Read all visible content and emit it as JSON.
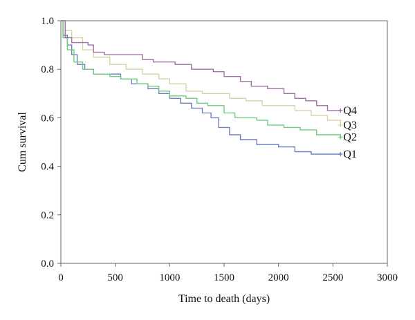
{
  "chart_data": {
    "type": "line",
    "title": "",
    "xlabel": "Time to death (days)",
    "ylabel": "Cum survival",
    "xlim": [
      0,
      3000
    ],
    "ylim": [
      0.0,
      1.0
    ],
    "x_ticks": [
      0,
      500,
      1000,
      1500,
      2000,
      2500,
      3000
    ],
    "x_tick_labels": [
      "0",
      "500",
      "1000",
      "1500",
      "2000",
      "2500",
      "3000"
    ],
    "y_ticks": [
      0.0,
      0.2,
      0.4,
      0.6,
      0.8,
      1.0
    ],
    "y_tick_labels": [
      "0.0",
      "0.2",
      "0.4",
      "0.6",
      "0.8",
      "1.0"
    ],
    "grid": false,
    "legend": "labels at line ends (right)",
    "series": [
      {
        "name": "Q1",
        "color": "#6f7fbf",
        "points": [
          [
            0,
            1.0
          ],
          [
            20,
            0.94
          ],
          [
            60,
            0.9
          ],
          [
            100,
            0.86
          ],
          [
            150,
            0.82
          ],
          [
            220,
            0.8
          ],
          [
            300,
            0.78
          ],
          [
            500,
            0.78
          ],
          [
            550,
            0.76
          ],
          [
            650,
            0.74
          ],
          [
            800,
            0.72
          ],
          [
            900,
            0.7
          ],
          [
            1000,
            0.68
          ],
          [
            1100,
            0.66
          ],
          [
            1200,
            0.64
          ],
          [
            1300,
            0.62
          ],
          [
            1380,
            0.6
          ],
          [
            1450,
            0.56
          ],
          [
            1550,
            0.53
          ],
          [
            1650,
            0.51
          ],
          [
            1800,
            0.49
          ],
          [
            2000,
            0.48
          ],
          [
            2150,
            0.46
          ],
          [
            2300,
            0.45
          ],
          [
            2570,
            0.45
          ]
        ],
        "end_label": "Q1"
      },
      {
        "name": "Q2",
        "color": "#6fcf7f",
        "points": [
          [
            0,
            1.0
          ],
          [
            20,
            0.93
          ],
          [
            60,
            0.88
          ],
          [
            120,
            0.83
          ],
          [
            200,
            0.8
          ],
          [
            300,
            0.78
          ],
          [
            450,
            0.77
          ],
          [
            550,
            0.76
          ],
          [
            700,
            0.74
          ],
          [
            800,
            0.73
          ],
          [
            900,
            0.71
          ],
          [
            1000,
            0.69
          ],
          [
            1150,
            0.68
          ],
          [
            1250,
            0.66
          ],
          [
            1350,
            0.65
          ],
          [
            1500,
            0.62
          ],
          [
            1600,
            0.6
          ],
          [
            1800,
            0.59
          ],
          [
            1900,
            0.57
          ],
          [
            2050,
            0.56
          ],
          [
            2200,
            0.55
          ],
          [
            2350,
            0.53
          ],
          [
            2570,
            0.52
          ]
        ],
        "end_label": "Q2"
      },
      {
        "name": "Q3",
        "color": "#d9d2a6",
        "points": [
          [
            0,
            1.0
          ],
          [
            40,
            0.96
          ],
          [
            100,
            0.93
          ],
          [
            200,
            0.88
          ],
          [
            300,
            0.85
          ],
          [
            450,
            0.82
          ],
          [
            600,
            0.8
          ],
          [
            750,
            0.78
          ],
          [
            900,
            0.76
          ],
          [
            1000,
            0.74
          ],
          [
            1150,
            0.71
          ],
          [
            1300,
            0.7
          ],
          [
            1450,
            0.7
          ],
          [
            1550,
            0.68
          ],
          [
            1700,
            0.67
          ],
          [
            1850,
            0.65
          ],
          [
            2000,
            0.65
          ],
          [
            2150,
            0.63
          ],
          [
            2300,
            0.61
          ],
          [
            2450,
            0.59
          ],
          [
            2570,
            0.57
          ]
        ],
        "end_label": "Q3"
      },
      {
        "name": "Q4",
        "color": "#9f6fa6",
        "points": [
          [
            0,
            1.0
          ],
          [
            40,
            0.93
          ],
          [
            100,
            0.91
          ],
          [
            250,
            0.9
          ],
          [
            300,
            0.87
          ],
          [
            400,
            0.86
          ],
          [
            700,
            0.86
          ],
          [
            750,
            0.84
          ],
          [
            850,
            0.83
          ],
          [
            1050,
            0.82
          ],
          [
            1200,
            0.8
          ],
          [
            1400,
            0.79
          ],
          [
            1500,
            0.77
          ],
          [
            1650,
            0.75
          ],
          [
            1750,
            0.73
          ],
          [
            1900,
            0.72
          ],
          [
            2050,
            0.7
          ],
          [
            2150,
            0.68
          ],
          [
            2250,
            0.67
          ],
          [
            2350,
            0.65
          ],
          [
            2450,
            0.63
          ],
          [
            2570,
            0.63
          ]
        ],
        "end_label": "Q4"
      }
    ]
  }
}
